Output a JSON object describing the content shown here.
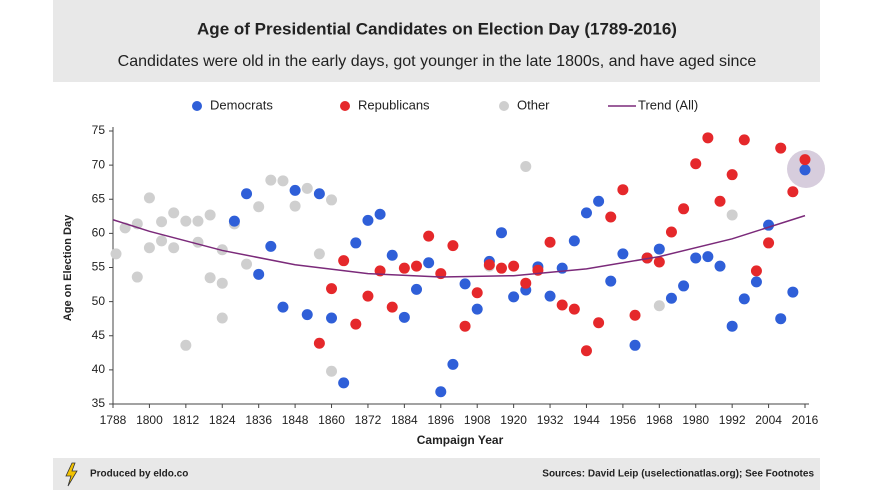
{
  "chart_data": {
    "type": "scatter",
    "title": "Age of Presidential Candidates on Election Day (1789-2016)",
    "subtitle": "Candidates were old in the early days, got younger in the late 1800s, and have aged since",
    "x_label": "Campaign Year",
    "y_label": "Age on Election Day",
    "xlim": [
      1788,
      2016
    ],
    "xticks": [
      1788,
      1800,
      1812,
      1824,
      1836,
      1848,
      1860,
      1872,
      1884,
      1896,
      1908,
      1920,
      1932,
      1944,
      1956,
      1968,
      1980,
      1992,
      2004,
      2016
    ],
    "ylim": [
      35,
      75
    ],
    "yticks": [
      35,
      40,
      45,
      50,
      55,
      60,
      65,
      70,
      75
    ],
    "series": [
      {
        "name": "Democrats",
        "color": "#2f5fd8",
        "x": [
          1828,
          1832,
          1836,
          1840,
          1844,
          1848,
          1852,
          1856,
          1860,
          1864,
          1868,
          1872,
          1876,
          1880,
          1884,
          1888,
          1892,
          1896,
          1900,
          1904,
          1908,
          1912,
          1916,
          1920,
          1924,
          1928,
          1932,
          1936,
          1940,
          1944,
          1948,
          1952,
          1956,
          1960,
          1964,
          1968,
          1972,
          1976,
          1980,
          1984,
          1988,
          1992,
          1996,
          2000,
          2004,
          2008,
          2012,
          2016
        ],
        "values": [
          61.8,
          65.8,
          54.0,
          58.1,
          49.2,
          66.3,
          48.1,
          65.8,
          47.6,
          38.1,
          58.6,
          61.9,
          62.8,
          56.8,
          47.7,
          51.8,
          55.7,
          36.8,
          40.8,
          52.6,
          48.9,
          55.9,
          60.1,
          50.7,
          51.7,
          55.1,
          50.8,
          54.9,
          58.9,
          63.0,
          64.7,
          53.0,
          57.0,
          43.6,
          56.4,
          57.7,
          50.5,
          52.3,
          56.4,
          56.6,
          55.2,
          46.4,
          50.4,
          52.9,
          61.2,
          47.5,
          51.4,
          69.3
        ]
      },
      {
        "name": "Republicans",
        "color": "#e5282b",
        "x": [
          1856,
          1860,
          1864,
          1868,
          1872,
          1876,
          1880,
          1884,
          1888,
          1892,
          1896,
          1900,
          1904,
          1908,
          1912,
          1916,
          1920,
          1924,
          1928,
          1932,
          1936,
          1940,
          1944,
          1948,
          1952,
          1956,
          1960,
          1964,
          1968,
          1972,
          1976,
          1980,
          1984,
          1988,
          1992,
          1996,
          2000,
          2004,
          2008,
          2012,
          2016
        ],
        "values": [
          43.9,
          51.9,
          56.0,
          46.7,
          50.8,
          54.5,
          49.2,
          54.9,
          55.2,
          59.6,
          54.1,
          58.2,
          46.4,
          51.3,
          55.4,
          54.9,
          55.2,
          52.7,
          54.6,
          58.7,
          49.5,
          48.9,
          42.8,
          46.9,
          62.4,
          66.4,
          48.0,
          56.4,
          55.8,
          60.2,
          63.6,
          70.2,
          74.0,
          64.7,
          68.6,
          73.7,
          54.5,
          58.6,
          72.5,
          66.1,
          70.8
        ]
      },
      {
        "name": "Other",
        "color": "#cfcfcf",
        "x": [
          1789,
          1792,
          1796,
          1796,
          1800,
          1800,
          1804,
          1804,
          1808,
          1808,
          1812,
          1812,
          1816,
          1816,
          1820,
          1820,
          1824,
          1824,
          1824,
          1828,
          1832,
          1836,
          1840,
          1844,
          1848,
          1852,
          1856,
          1860,
          1860,
          1912,
          1924,
          1968,
          1992
        ],
        "values": [
          57.0,
          60.8,
          61.4,
          53.6,
          65.2,
          57.9,
          58.9,
          61.7,
          63.0,
          57.9,
          61.8,
          43.6,
          58.7,
          61.8,
          62.7,
          53.5,
          57.6,
          52.7,
          47.6,
          61.4,
          55.5,
          63.9,
          67.8,
          67.7,
          64.0,
          66.6,
          57.0,
          64.9,
          39.8,
          55.2,
          69.8,
          49.4,
          62.7
        ]
      },
      {
        "name": "Trend (All)",
        "color": "#7b2a7a",
        "style": "line",
        "x": [
          1788,
          1800,
          1824,
          1848,
          1872,
          1896,
          1920,
          1944,
          1968,
          1992,
          2016
        ],
        "values": [
          62.0,
          60.3,
          57.5,
          55.4,
          54.1,
          53.6,
          53.8,
          54.8,
          56.6,
          59.2,
          62.6
        ]
      }
    ],
    "footer_left": "Produced by eldo.co",
    "footer_right": "Sources: David Leip (uselectionatlas.org); See Footnotes"
  }
}
